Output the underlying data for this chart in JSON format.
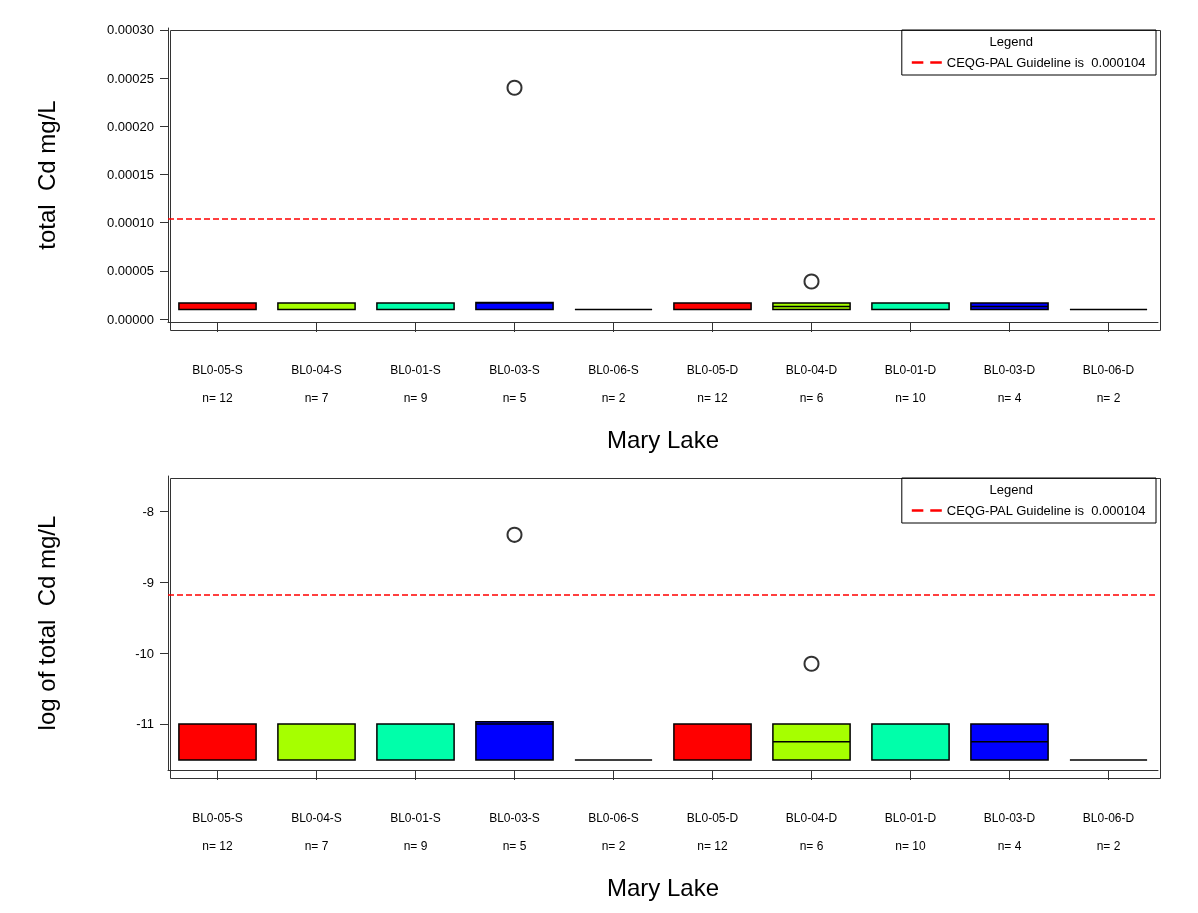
{
  "chart_data": [
    {
      "type": "box",
      "xlabel": "Mary Lake",
      "ylabel": "total  Cd mg/L",
      "legend_title": "Legend",
      "legend": "top right",
      "grid": false,
      "categories": [
        "BL0-05-S",
        "BL0-04-S",
        "BL0-01-S",
        "BL0-03-S",
        "BL0-06-S",
        "BL0-05-D",
        "BL0-04-D",
        "BL0-01-D",
        "BL0-03-D",
        "BL0-06-D"
      ],
      "colors": [
        "#ff0000",
        "#a6ff00",
        "#00ffaa",
        "#0000ff",
        "#000000",
        "#ff0000",
        "#a6ff00",
        "#00ffaa",
        "#0000ff",
        "#000000"
      ],
      "boxes": [
        {
          "low": 1e-05,
          "q1": 1e-05,
          "median": 1e-05,
          "q3": 1.67e-05,
          "high": 1.67e-05
        },
        {
          "low": 1e-05,
          "q1": 1e-05,
          "median": 1e-05,
          "q3": 1.67e-05,
          "high": 1.67e-05
        },
        {
          "low": 1e-05,
          "q1": 1e-05,
          "median": 1e-05,
          "q3": 1.67e-05,
          "high": 1.67e-05
        },
        {
          "low": 1e-05,
          "q1": 1e-05,
          "median": 1.67e-05,
          "q3": 1.73e-05,
          "high": 1.73e-05,
          "outliers": [
            0.00024
          ]
        },
        {
          "low": 1e-05,
          "q1": 1e-05,
          "median": 1e-05,
          "q3": 1e-05,
          "high": 1e-05
        },
        {
          "low": 1e-05,
          "q1": 1e-05,
          "median": 1e-05,
          "q3": 1.67e-05,
          "high": 1.67e-05
        },
        {
          "low": 1e-05,
          "q1": 1e-05,
          "median": 1.3e-05,
          "q3": 1.67e-05,
          "high": 1.67e-05,
          "outliers": [
            3.9e-05
          ]
        },
        {
          "low": 1e-05,
          "q1": 1e-05,
          "median": 1e-05,
          "q3": 1.67e-05,
          "high": 1.67e-05
        },
        {
          "low": 1e-05,
          "q1": 1e-05,
          "median": 1.3e-05,
          "q3": 1.67e-05,
          "high": 1.67e-05
        },
        {
          "low": 1e-05,
          "q1": 1e-05,
          "median": 1e-05,
          "q3": 1e-05,
          "high": 1e-05
        }
      ],
      "ylim": [
        -3e-06,
        0.000302
      ],
      "yticks": [
        {
          "value": 0,
          "label": "0.00000"
        },
        {
          "value": 5e-05,
          "label": "0.00005"
        },
        {
          "value": 0.0001,
          "label": "0.00010"
        },
        {
          "value": 0.00015,
          "label": "0.00015"
        },
        {
          "value": 0.0002,
          "label": "0.00020"
        },
        {
          "value": 0.00025,
          "label": "0.00025"
        },
        {
          "value": 0.0003,
          "label": "0.00030"
        }
      ],
      "ref_lines": [
        {
          "axis": "y",
          "value": 0.000104,
          "label": "CEQG-PAL Guideline is  0.000104",
          "color": "#ff0000",
          "line_style": "dashed"
        }
      ],
      "annotations": [
        "n= 12",
        "n= 7",
        "n= 9",
        "n= 5",
        "n= 2",
        "n= 12",
        "n= 6",
        "n= 10",
        "n= 4",
        "n= 2"
      ]
    },
    {
      "type": "box",
      "xlabel": "Mary Lake",
      "ylabel": "log of total  Cd mg/L",
      "legend_title": "Legend",
      "legend": "top right",
      "grid": false,
      "categories": [
        "BL0-05-S",
        "BL0-04-S",
        "BL0-01-S",
        "BL0-03-S",
        "BL0-06-S",
        "BL0-05-D",
        "BL0-04-D",
        "BL0-01-D",
        "BL0-03-D",
        "BL0-06-D"
      ],
      "colors": [
        "#ff0000",
        "#a6ff00",
        "#00ffaa",
        "#0000ff",
        "#000000",
        "#ff0000",
        "#a6ff00",
        "#00ffaa",
        "#0000ff",
        "#000000"
      ],
      "boxes": [
        {
          "low": -11.51,
          "q1": -11.51,
          "median": -11.51,
          "q3": -11.0,
          "high": -11.0
        },
        {
          "low": -11.51,
          "q1": -11.51,
          "median": -11.51,
          "q3": -11.0,
          "high": -11.0
        },
        {
          "low": -11.51,
          "q1": -11.51,
          "median": -11.51,
          "q3": -11.0,
          "high": -11.0
        },
        {
          "low": -11.51,
          "q1": -11.51,
          "median": -11.0,
          "q3": -10.97,
          "high": -10.97,
          "outliers": [
            -8.33
          ]
        },
        {
          "low": -11.51,
          "q1": -11.51,
          "median": -11.51,
          "q3": -11.51,
          "high": -11.51
        },
        {
          "low": -11.51,
          "q1": -11.51,
          "median": -11.51,
          "q3": -11.0,
          "high": -11.0
        },
        {
          "low": -11.51,
          "q1": -11.51,
          "median": -11.25,
          "q3": -11.0,
          "high": -11.0,
          "outliers": [
            -10.15
          ]
        },
        {
          "low": -11.51,
          "q1": -11.51,
          "median": -11.51,
          "q3": -11.0,
          "high": -11.0
        },
        {
          "low": -11.51,
          "q1": -11.51,
          "median": -11.25,
          "q3": -11.0,
          "high": -11.0
        },
        {
          "low": -11.51,
          "q1": -11.51,
          "median": -11.51,
          "q3": -11.51,
          "high": -11.51
        }
      ],
      "ylim": [
        -11.65,
        -7.5
      ],
      "yticks": [
        -11,
        -10,
        -9,
        -8
      ],
      "ref_lines": [
        {
          "axis": "y",
          "value": -9.17,
          "label": "CEQG-PAL Guideline is  0.000104",
          "color": "#ff0000",
          "line_style": "dashed"
        }
      ],
      "annotations": [
        "n= 12",
        "n= 7",
        "n= 9",
        "n= 5",
        "n= 2",
        "n= 12",
        "n= 6",
        "n= 10",
        "n= 4",
        "n= 2"
      ]
    }
  ]
}
